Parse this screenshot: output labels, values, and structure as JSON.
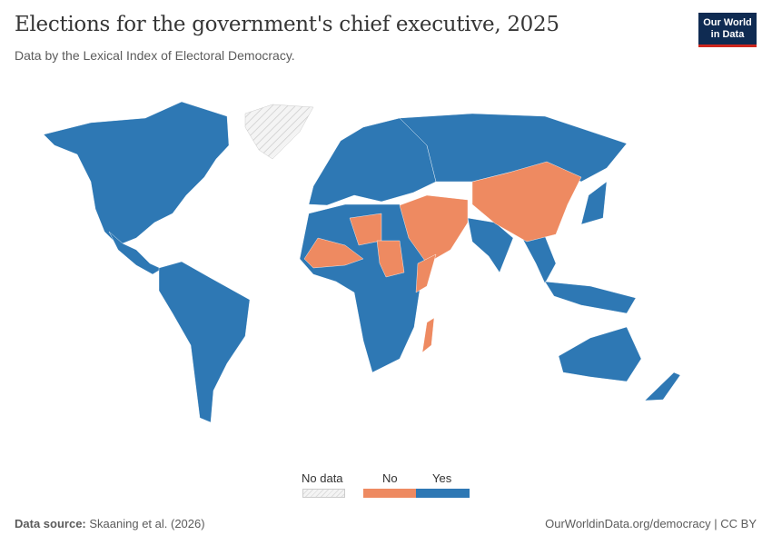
{
  "header": {
    "title": "Elections for the government's chief executive, 2025",
    "subtitle": "Data by the Lexical Index of Electoral Democracy.",
    "logo_line1": "Our World",
    "logo_line2": "in Data"
  },
  "colors": {
    "yes": "#2e78b4",
    "no": "#ee8a61",
    "no_data": "hatched-grey"
  },
  "legend": {
    "no_data": "No data",
    "no": "No",
    "yes": "Yes"
  },
  "footer": {
    "source_label": "Data source:",
    "source": "Skaaning et al. (2026)",
    "link": "OurWorldinData.org/democracy | CC BY"
  }
}
